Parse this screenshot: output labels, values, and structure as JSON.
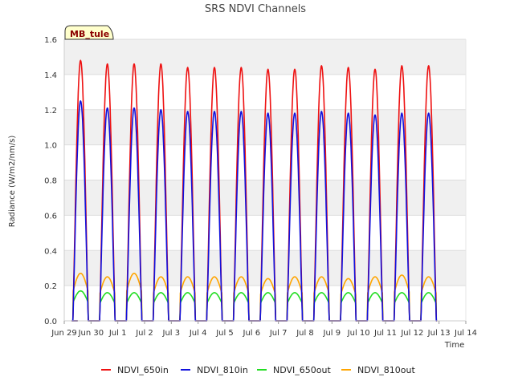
{
  "chart_data": {
    "type": "line",
    "title": "SRS NDVI Channels",
    "xlabel": "Time",
    "ylabel": "Radiance (W/m2/nm/s)",
    "site_label": "MB_tule",
    "ylim": [
      0.0,
      1.6
    ],
    "xlim": [
      "Jun 29",
      "Jul 14"
    ],
    "y_ticks": [
      "0.0",
      "0.2",
      "0.4",
      "0.6",
      "0.8",
      "1.0",
      "1.2",
      "1.4",
      "1.6"
    ],
    "x_ticks": [
      "Jun 29",
      "Jun 30",
      "Jul 1",
      "Jul 2",
      "Jul 3",
      "Jul 4",
      "Jul 5",
      "Jul 6",
      "Jul 7",
      "Jul 8",
      "Jul 9",
      "Jul 10",
      "Jul 11",
      "Jul 12",
      "Jul 13",
      "Jul 14"
    ],
    "grid": true,
    "legend_position": "bottom",
    "series": [
      {
        "name": "NDVI_650in",
        "color": "#ee1111",
        "daily_peak": [
          1.48,
          1.46,
          1.46,
          1.46,
          1.44,
          1.44,
          1.44,
          1.43,
          1.43,
          1.45,
          1.44,
          1.43,
          1.45,
          1.45
        ]
      },
      {
        "name": "NDVI_810in",
        "color": "#1111dd",
        "daily_peak": [
          1.25,
          1.21,
          1.21,
          1.2,
          1.19,
          1.19,
          1.19,
          1.18,
          1.18,
          1.19,
          1.18,
          1.17,
          1.18,
          1.18
        ]
      },
      {
        "name": "NDVI_650out",
        "color": "#22dd22",
        "daily_peak": [
          0.17,
          0.16,
          0.16,
          0.16,
          0.16,
          0.16,
          0.16,
          0.16,
          0.16,
          0.16,
          0.16,
          0.16,
          0.16,
          0.16
        ]
      },
      {
        "name": "NDVI_810out",
        "color": "#ffa500",
        "daily_peak": [
          0.27,
          0.25,
          0.27,
          0.25,
          0.25,
          0.25,
          0.25,
          0.24,
          0.25,
          0.25,
          0.24,
          0.25,
          0.26,
          0.25
        ]
      }
    ]
  }
}
